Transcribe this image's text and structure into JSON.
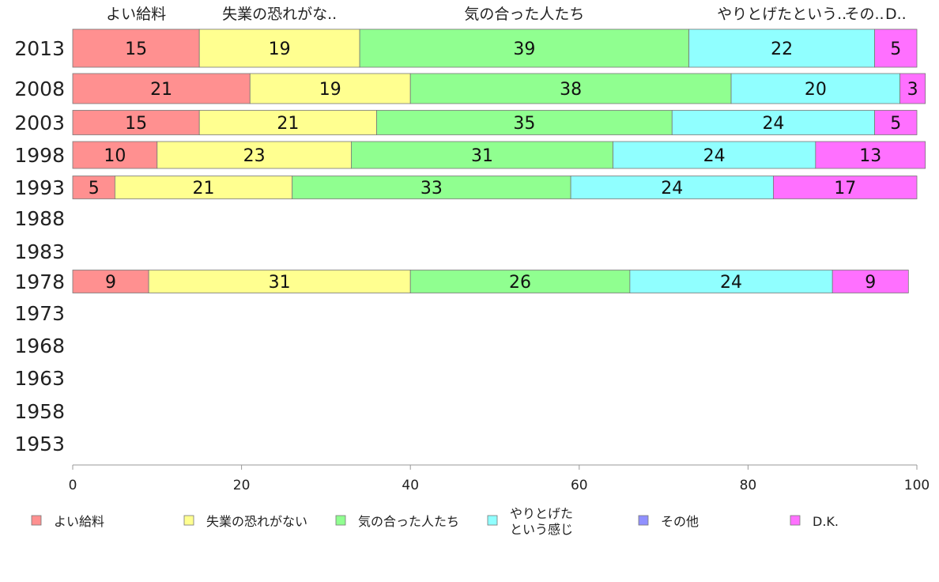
{
  "chart_data": {
    "type": "bar",
    "orientation": "horizontal",
    "stacked": true,
    "categories": [
      "2013",
      "2008",
      "2003",
      "1998",
      "1993",
      "1988",
      "1983",
      "1978",
      "1973",
      "1968",
      "1963",
      "1958",
      "1953"
    ],
    "series": [
      {
        "name": "よい給料",
        "top_label": "よい給料",
        "color": "#ff9090",
        "values": [
          15,
          21,
          15,
          10,
          5,
          null,
          null,
          9,
          null,
          null,
          null,
          null,
          null
        ]
      },
      {
        "name": "失業の恐れがない",
        "top_label": "失業の恐れがな..",
        "color": "#ffff90",
        "values": [
          19,
          19,
          21,
          23,
          21,
          null,
          null,
          31,
          null,
          null,
          null,
          null,
          null
        ]
      },
      {
        "name": "気の合った人たち",
        "top_label": "気の合った人たち",
        "color": "#90ff90",
        "values": [
          39,
          38,
          35,
          31,
          33,
          null,
          null,
          26,
          null,
          null,
          null,
          null,
          null
        ]
      },
      {
        "name": [
          "やりとげた",
          "という感じ"
        ],
        "top_label": "やりとげたという..",
        "color": "#90ffff",
        "values": [
          22,
          20,
          24,
          24,
          24,
          null,
          null,
          24,
          null,
          null,
          null,
          null,
          null
        ]
      },
      {
        "name": "その他",
        "top_label": "その..",
        "color": "#9090ff",
        "values": [
          0,
          0,
          0,
          0,
          0,
          null,
          null,
          0,
          null,
          null,
          null,
          null,
          null
        ]
      },
      {
        "name": "D.K.",
        "top_label": "D..",
        "color": "#ff70ff",
        "values": [
          5,
          3,
          5,
          13,
          17,
          null,
          null,
          9,
          null,
          null,
          null,
          null,
          null
        ]
      }
    ],
    "xlim": [
      0,
      100
    ],
    "xticks": [
      "0",
      "20",
      "40",
      "60",
      "80",
      "100"
    ],
    "legend_position": "bottom",
    "grid": false
  }
}
